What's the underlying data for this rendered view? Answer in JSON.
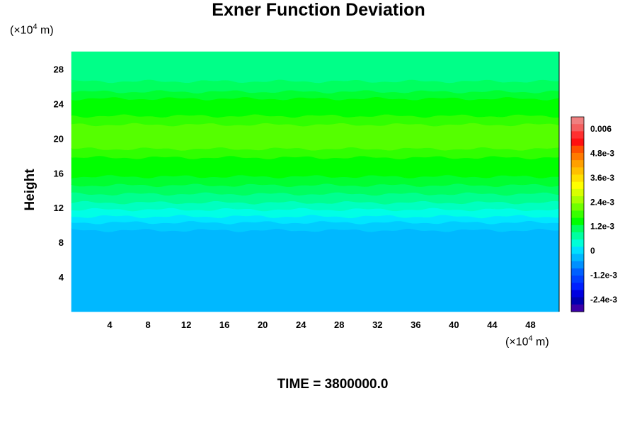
{
  "title": "Exner Function Deviation",
  "y_units": {
    "prefix": "(×10",
    "exp": "4",
    "suffix": " m)"
  },
  "x_units": {
    "prefix": "(×10",
    "exp": "4",
    "suffix": " m)"
  },
  "time_label": "TIME = 3800000.0",
  "chart_data": {
    "type": "heatmap",
    "title": "Exner Function Deviation",
    "ylabel": "Height",
    "xlabel": "",
    "xlim": [
      0,
      51
    ],
    "ylim": [
      0,
      30
    ],
    "x_ticks": [
      4,
      8,
      12,
      16,
      20,
      24,
      28,
      32,
      36,
      40,
      44,
      48
    ],
    "x_tick_labels": [
      "4",
      "8",
      "12",
      "16",
      "20",
      "24",
      "28",
      "32",
      "36",
      "40",
      "44",
      "48"
    ],
    "y_ticks": [
      4,
      8,
      12,
      16,
      20,
      24,
      28
    ],
    "y_tick_labels": [
      "4",
      "8",
      "12",
      "16",
      "20",
      "24",
      "28"
    ],
    "colorbar": {
      "tick_values": [
        0.006,
        0.0048,
        0.0036,
        0.0024,
        0.0012,
        0,
        -0.0012,
        -0.0024
      ],
      "tick_labels": [
        "0.006",
        "4.8e-3",
        "3.6e-3",
        "2.4e-3",
        "1.2e-3",
        "0",
        "-1.2e-3",
        "-2.4e-3"
      ],
      "min": -0.003,
      "max": 0.0066,
      "levels": 24,
      "colors_top_to_bottom": [
        "#f08080",
        "#f46060",
        "#ff3030",
        "#ff1010",
        "#ff5000",
        "#ff7a00",
        "#ffa000",
        "#ffc000",
        "#ffe000",
        "#ffff00",
        "#d8ff00",
        "#a8ff00",
        "#70ff00",
        "#38ff00",
        "#00ff00",
        "#00ff60",
        "#00ffa0",
        "#00ffd8",
        "#00e0ff",
        "#00b8ff",
        "#0090ff",
        "#0060ff",
        "#0040ff",
        "#0020ff",
        "#0000e0",
        "#0000b0",
        "#3a00a8"
      ]
    },
    "bands": [
      {
        "y_from": 0,
        "y_to": 9.4,
        "value": -0.0006,
        "color": "#00b8ff"
      },
      {
        "y_from": 9.4,
        "y_to": 10.3,
        "value": -0.0002,
        "color": "#00ccff"
      },
      {
        "y_from": 10.3,
        "y_to": 11.0,
        "value": 0.0,
        "color": "#00e6ff"
      },
      {
        "y_from": 11.0,
        "y_to": 11.8,
        "value": 0.0002,
        "color": "#00ffe6"
      },
      {
        "y_from": 11.8,
        "y_to": 12.6,
        "value": 0.0006,
        "color": "#00ffc0"
      },
      {
        "y_from": 12.6,
        "y_to": 13.6,
        "value": 0.001,
        "color": "#00ff90"
      },
      {
        "y_from": 13.6,
        "y_to": 14.6,
        "value": 0.0014,
        "color": "#00ff60"
      },
      {
        "y_from": 14.6,
        "y_to": 15.6,
        "value": 0.0017,
        "color": "#00ff30"
      },
      {
        "y_from": 15.6,
        "y_to": 17.8,
        "value": 0.002,
        "color": "#00ff00"
      },
      {
        "y_from": 17.8,
        "y_to": 18.8,
        "value": 0.0022,
        "color": "#30ff00"
      },
      {
        "y_from": 18.8,
        "y_to": 21.6,
        "value": 0.0024,
        "color": "#55ff00"
      },
      {
        "y_from": 21.6,
        "y_to": 22.6,
        "value": 0.0022,
        "color": "#30ff00"
      },
      {
        "y_from": 22.6,
        "y_to": 24.6,
        "value": 0.002,
        "color": "#00ff00"
      },
      {
        "y_from": 24.6,
        "y_to": 25.4,
        "value": 0.0017,
        "color": "#00ff30"
      },
      {
        "y_from": 25.4,
        "y_to": 26.6,
        "value": 0.0014,
        "color": "#00ff60"
      },
      {
        "y_from": 26.6,
        "y_to": 30,
        "value": 0.001,
        "color": "#00ff88"
      }
    ]
  }
}
